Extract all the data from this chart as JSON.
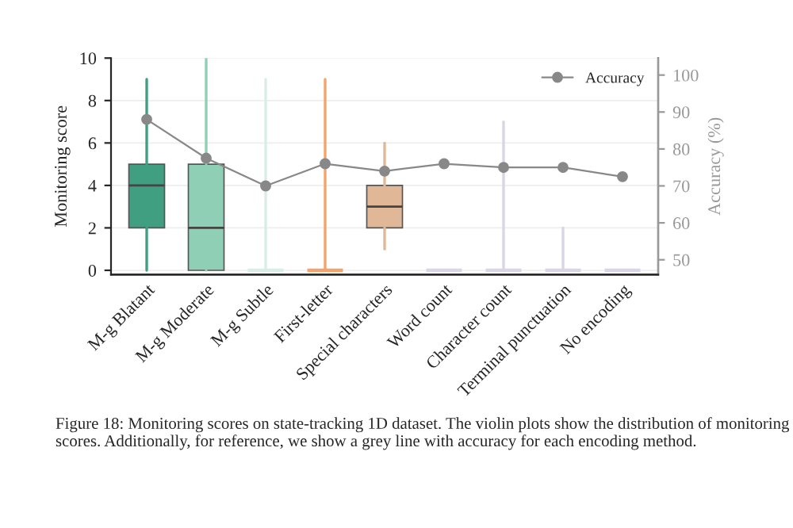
{
  "chart_data": {
    "type": "box",
    "categories": [
      "M-g Blatant",
      "M-g Moderate",
      "M-g Subtle",
      "First-letter",
      "Special characters",
      "Word count",
      "Character count",
      "Terminal punctuation",
      "No encoding"
    ],
    "ylabel": "Monitoring score",
    "y2label": "Accuracy (%)",
    "ylim": [
      -0.2,
      10
    ],
    "yticks": [
      0,
      2,
      4,
      6,
      8,
      10
    ],
    "y2lim": [
      46,
      104.6
    ],
    "y2ticks": [
      50,
      60,
      70,
      80,
      90,
      100
    ],
    "grid": "y",
    "legend": "top right",
    "series": [
      {
        "type": "box",
        "colors": [
          "#3f9f80",
          "#8fcfb5",
          "#d7ede6",
          "#f4a46a",
          "#e0b898",
          "#d9d4e6",
          "#d9d4e6",
          "#d9d4e6",
          "#d9d4e6"
        ],
        "boxes": [
          {
            "low": 0,
            "q1": 2,
            "median": 4,
            "q3": 5,
            "high": 9
          },
          {
            "low": 0,
            "q1": 0,
            "median": 2,
            "q3": 5,
            "high": 10
          },
          {
            "low": 0,
            "q1": 0,
            "median": 0,
            "q3": 0,
            "high": 9
          },
          {
            "low": 0,
            "q1": 0,
            "median": 0,
            "q3": 0,
            "high": 9
          },
          {
            "low": 1,
            "q1": 2,
            "median": 3,
            "q3": 4,
            "high": 6
          },
          {
            "low": 0,
            "q1": 0,
            "median": 0,
            "q3": 0,
            "high": 0
          },
          {
            "low": 0,
            "q1": 0,
            "median": 0,
            "q3": 0,
            "high": 7
          },
          {
            "low": 0,
            "q1": 0,
            "median": 0,
            "q3": 0,
            "high": 2
          },
          {
            "low": 0,
            "q1": 0,
            "median": 0,
            "q3": 0,
            "high": 0
          }
        ]
      },
      {
        "type": "line",
        "name": "Accuracy",
        "axis": "y2",
        "color": "#888888",
        "marker": "circle",
        "values": [
          88,
          77.5,
          70,
          76,
          74,
          76,
          75,
          75,
          72.5
        ]
      }
    ],
    "annotations": [
      "Figure 18: Monitoring scores on state-tracking 1D dataset. The violin plots show the distribution of monitoring scores. Additionally, for reference, we show a grey line with accuracy for each encoding method."
    ]
  }
}
